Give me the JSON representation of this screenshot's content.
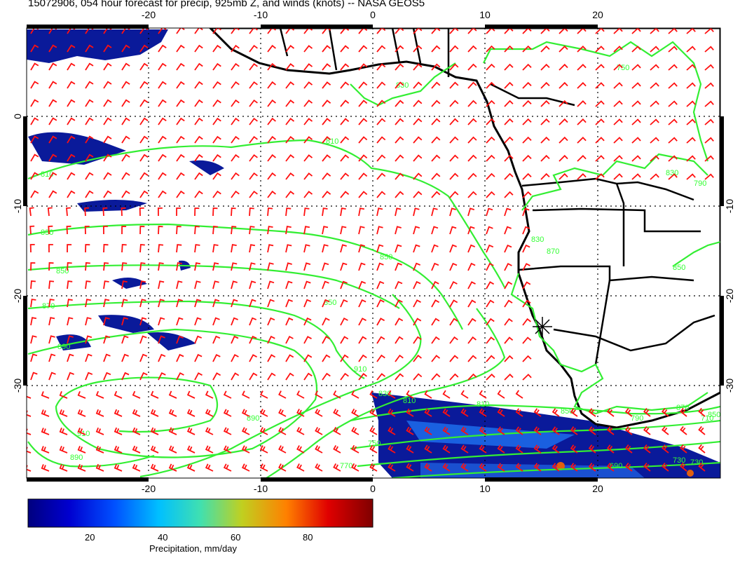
{
  "title": "15072906, 054 hour forecast for precip, 925mb Z, and winds (knots) -- NASA GEOS5",
  "map": {
    "lon_ticks_top": [
      "-20",
      "-10",
      "0",
      "10",
      "20"
    ],
    "lon_ticks_bottom": [
      "-20",
      "-10",
      "0",
      "10",
      "20"
    ],
    "lat_ticks_left": [
      "0",
      "-10",
      "-20",
      "-30"
    ],
    "lat_ticks_right": [
      "-10",
      "-20",
      "-30"
    ],
    "lon_range": [
      -31,
      31
    ],
    "lat_range": [
      -40,
      10
    ],
    "contour_labels": [
      "810",
      "810",
      "830",
      "850",
      "870",
      "850",
      "850",
      "890",
      "910",
      "890",
      "810",
      "830",
      "830",
      "850",
      "870",
      "890",
      "910",
      "830",
      "870",
      "850",
      "770",
      "750",
      "730",
      "710",
      "790",
      "810",
      "850",
      "690",
      "730",
      "750",
      "830",
      "790"
    ],
    "colors": {
      "contour": "#33ee33",
      "wind_barb": "#ff0000",
      "coastline": "#000000",
      "precip_low": "#000080",
      "precip_high": "#8b0000"
    },
    "icons": [
      "wind-barb-icon",
      "location-star-icon"
    ]
  },
  "colorbar": {
    "label": "Precipitation, mm/day",
    "ticks": [
      "20",
      "40",
      "60",
      "80"
    ],
    "range": [
      0,
      100
    ]
  }
}
